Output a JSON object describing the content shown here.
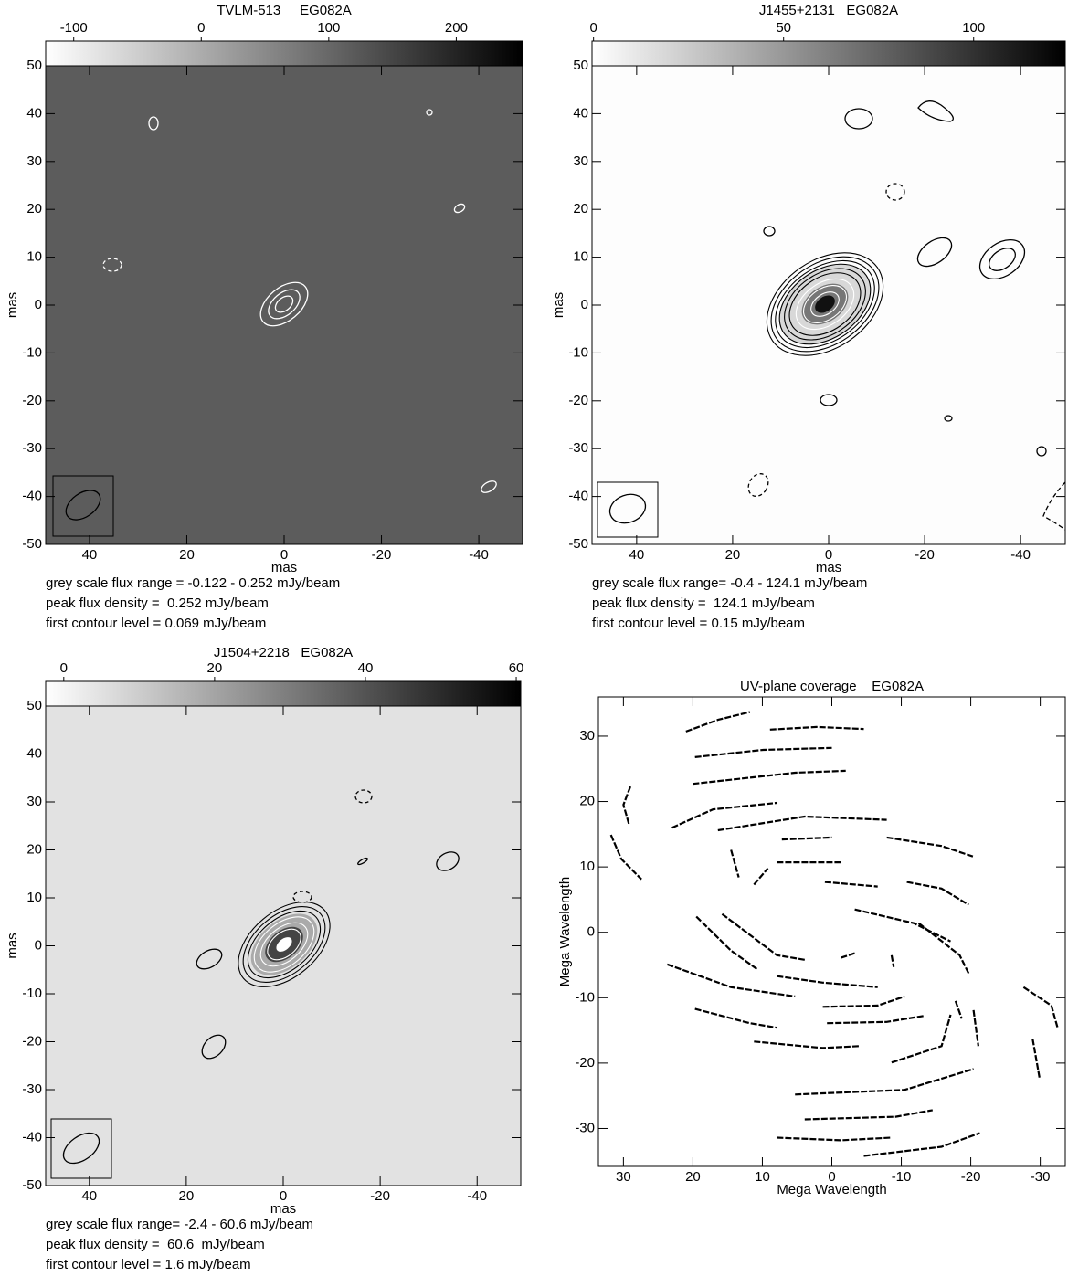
{
  "chart_data": [
    {
      "type": "image",
      "title": "TVLM-513     EG082A",
      "colorbar_lim": [
        -122,
        252
      ],
      "colorbar_ticks": [
        -100,
        0,
        100,
        200
      ],
      "xlim": [
        49,
        -49
      ],
      "ylim": [
        -50,
        50
      ],
      "xticks": [
        40,
        20,
        0,
        -20,
        -40
      ],
      "yticks": [
        50,
        40,
        30,
        20,
        10,
        0,
        -10,
        -20,
        -30,
        -40,
        -50
      ],
      "xlabel": "mas",
      "ylabel": "mas",
      "notes": [
        "grey scale flux range = -0.122 - 0.252 mJy/beam",
        "peak flux density =  0.252 mJy/beam",
        "first contour level = 0.069 mJy/beam"
      ]
    },
    {
      "type": "image",
      "title": "J1455+2131   EG082A",
      "colorbar_lim": [
        -0.4,
        124.1
      ],
      "colorbar_ticks": [
        0,
        50,
        100
      ],
      "xlim": [
        49.3,
        -49.3
      ],
      "ylim": [
        -50,
        50
      ],
      "xticks": [
        40,
        20,
        0,
        -20,
        -40
      ],
      "yticks": [
        50,
        40,
        30,
        20,
        10,
        0,
        -10,
        -20,
        -30,
        -40,
        -50
      ],
      "xlabel": "mas",
      "ylabel": "mas",
      "notes": [
        "grey scale flux range= -0.4 - 124.1 mJy/beam",
        "peak flux density =  124.1 mJy/beam",
        "first contour level = 0.15 mJy/beam"
      ]
    },
    {
      "type": "image",
      "title": "J1504+2218   EG082A",
      "colorbar_lim": [
        -2.4,
        60.6
      ],
      "colorbar_ticks": [
        0,
        20,
        40,
        60
      ],
      "xlim": [
        49,
        -49
      ],
      "ylim": [
        -50,
        50
      ],
      "xticks": [
        40,
        20,
        0,
        -20,
        -40
      ],
      "yticks": [
        50,
        40,
        30,
        20,
        10,
        0,
        -10,
        -20,
        -30,
        -40,
        -50
      ],
      "xlabel": "mas",
      "ylabel": "mas",
      "notes": [
        "grey scale flux range= -2.4 - 60.6 mJy/beam",
        "peak flux density =  60.6  mJy/beam",
        "first contour level = 1.6 mJy/beam"
      ]
    },
    {
      "type": "tracks",
      "title": "UV-plane coverage    EG082A",
      "xlim": [
        33.6,
        -33.6
      ],
      "ylim": [
        -35.8,
        36
      ],
      "xticks": [
        30,
        20,
        10,
        0,
        -10,
        -20,
        -30
      ],
      "yticks": [
        30,
        20,
        10,
        0,
        -10,
        -20,
        -30
      ],
      "xlabel": "Mega Wavelength",
      "ylabel": "Mega Wavelength",
      "color": "#000000",
      "x": [
        21,
        16.4,
        11.8,
        null,
        8.9,
        2.2,
        -4.6,
        null,
        19.7,
        9.9,
        0,
        null,
        20,
        5.3,
        -2,
        null,
        29,
        30,
        29.2,
        null,
        23,
        17.1,
        7.9,
        null,
        16.4,
        3.9,
        -7.9,
        null,
        31.8,
        30.3,
        27.4,
        null,
        7.2,
        0,
        null,
        -7.9,
        -15.8,
        -20.3,
        null,
        14.5,
        13.4,
        null,
        11.2,
        9.2,
        null,
        7.9,
        -1.3,
        null,
        1,
        -6.6,
        null,
        -10.8,
        -15.8,
        -19.7,
        null,
        -3.3,
        -11.8,
        -17.1,
        null,
        19.5,
        14.5,
        10.8,
        null,
        15.8,
        7.9,
        3.9,
        null,
        23.7,
        14.5,
        5.3,
        null,
        19.7,
        11.8,
        7.9,
        null,
        7.9,
        1.3,
        -6.6,
        null,
        -12.5,
        -18.4,
        -19.7,
        null,
        1.3,
        -6.6,
        -10.5,
        null,
        0.7,
        -7.9,
        -13.2,
        null,
        11.2,
        1.3,
        -3.9,
        null,
        -8.6,
        -15.8,
        -17.1,
        null,
        -17.8,
        -18.7,
        null,
        -20.4,
        -21.1,
        null,
        -27.6,
        -31.6,
        -32.5,
        null,
        -28.9,
        -29.9,
        null,
        5.3,
        -10.5,
        -20.4,
        null,
        3.9,
        -9.2,
        -14.5,
        null,
        7.9,
        -1.3,
        -8.6,
        null,
        -4.6,
        -15.8,
        -21.3,
        null,
        -8.6,
        -8.9,
        null,
        -1.3,
        -3.3
      ],
      "values": [
        30.7,
        32.5,
        33.7,
        null,
        31,
        31.4,
        31.1,
        null,
        26.8,
        27.9,
        28.2,
        null,
        22.7,
        24.4,
        24.7,
        null,
        22.3,
        19.5,
        16.5,
        null,
        16,
        18.8,
        19.8,
        null,
        15.6,
        17.7,
        17.2,
        null,
        14.9,
        11.2,
        8.1,
        null,
        14.2,
        14.5,
        null,
        14.5,
        13.2,
        11.6,
        null,
        12.6,
        8.4,
        null,
        7.3,
        9.8,
        null,
        10.7,
        10.7,
        null,
        7.7,
        7,
        null,
        7.7,
        6.7,
        4.2,
        null,
        3.5,
        1.4,
        -1.4,
        null,
        2.4,
        -2.8,
        -5.6,
        null,
        2.8,
        -3.5,
        -4.2,
        null,
        -4.9,
        -8.4,
        -9.8,
        null,
        -11.7,
        -13.9,
        -14.6,
        null,
        -6.7,
        -7.7,
        -8.4,
        null,
        1.4,
        -3.5,
        -6.3,
        null,
        -11.4,
        -11.2,
        -9.8,
        null,
        -13.9,
        -13.7,
        -12.8,
        null,
        -16.7,
        -17.7,
        -17.4,
        null,
        -19.9,
        -17.4,
        -12.6,
        null,
        -10.5,
        -13.2,
        null,
        -11.9,
        -17.4,
        null,
        -8.4,
        -11.2,
        -14.6,
        null,
        -16.3,
        -22.3,
        null,
        -24.8,
        -24.1,
        -20.9,
        null,
        -28.6,
        -28.2,
        -27.2,
        null,
        -31.4,
        -31.8,
        -31.4,
        null,
        -34.2,
        -32.8,
        -30.7,
        null,
        -3.5,
        -5.3,
        null,
        -3.9,
        -3.2
      ]
    }
  ]
}
